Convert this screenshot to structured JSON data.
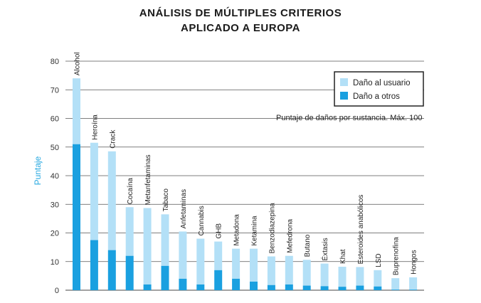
{
  "title_line1": "ANÁLISIS DE MÚLTIPLES CRITERIOS",
  "title_line2": "APLICADO A EUROPA",
  "note": "Puntaje de daños por sustancia. Máx. 100",
  "colors": {
    "user": "#b3e0f7",
    "others": "#1aa0e0",
    "axis_label": "#29a9e1"
  },
  "chart_data": {
    "type": "bar",
    "stacked": true,
    "title": "ANÁLISIS DE MÚLTIPLES CRITERIOS APLICADO A EUROPA",
    "ylabel": "Puntaje",
    "xlabel": "",
    "ylim": [
      0,
      80
    ],
    "yticks": [
      0,
      10,
      20,
      30,
      40,
      50,
      60,
      70,
      80
    ],
    "grid": true,
    "legend": "top-right",
    "categories": [
      "Alcohol",
      "Heroína",
      "Crack",
      "Cocaína",
      "Metanfetaminas",
      "Tabaco",
      "Anfetaminas",
      "Cannabis",
      "GHB",
      "Metadona",
      "Ketamina",
      "Benzodiazepina",
      "Mefedrona",
      "Butano",
      "Éxtasis",
      "Khat",
      "Esteroides anabólicos",
      "LSD",
      "Buprenofina",
      "Hongos"
    ],
    "series": [
      {
        "name": "Daño a otros",
        "values": [
          51,
          17.5,
          14,
          12,
          2,
          8.5,
          4,
          2,
          7,
          4,
          3,
          1.8,
          2,
          1.6,
          1.4,
          1.2,
          1.6,
          1.3,
          0.2,
          0.2
        ]
      },
      {
        "name": "Daño al usuario",
        "values": [
          23,
          34,
          34.5,
          17,
          26.7,
          18,
          16.5,
          16,
          10,
          10.5,
          11.5,
          10,
          10,
          9,
          7.9,
          7,
          6.5,
          5.7,
          4,
          4.3
        ]
      }
    ]
  }
}
